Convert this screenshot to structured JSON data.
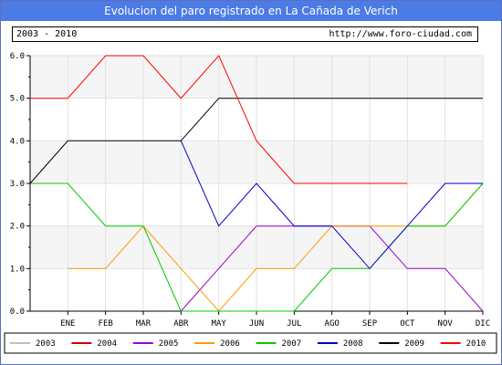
{
  "header": {
    "title": "Evolucion del paro registrado en La Cañada de Verich",
    "period": "2003 - 2010",
    "url": "http://www.foro-ciudad.com"
  },
  "chart_data": {
    "type": "line",
    "title": "Evolucion del paro registrado en La Cañada de Verich",
    "xlabel": "",
    "ylabel": "",
    "x_ticks": [
      "ENE",
      "FEB",
      "MAR",
      "ABR",
      "MAY",
      "JUN",
      "JUL",
      "AGO",
      "SEP",
      "OCT",
      "NOV",
      "DIC"
    ],
    "y_ticks": [
      "0.0",
      "1.0",
      "2.0",
      "3.0",
      "4.0",
      "5.0",
      "6.0"
    ],
    "ylim": [
      0,
      6
    ],
    "x_start": 0,
    "x_end": 12,
    "grid": true,
    "legend_position": "bottom",
    "series": [
      {
        "name": "2003",
        "color": "#c0c0c0",
        "points": []
      },
      {
        "name": "2004",
        "color": "#cc0000",
        "points": []
      },
      {
        "name": "2005",
        "color": "#9900cc",
        "points": [
          [
            4,
            0
          ],
          [
            5,
            1
          ],
          [
            6,
            2
          ],
          [
            7,
            2
          ],
          [
            8,
            2
          ],
          [
            9,
            2
          ],
          [
            10,
            1
          ],
          [
            11,
            1
          ],
          [
            12,
            0
          ]
        ]
      },
      {
        "name": "2006",
        "color": "#ff9900",
        "points": [
          [
            1,
            1
          ],
          [
            2,
            1
          ],
          [
            3,
            2
          ],
          [
            4,
            1
          ],
          [
            5,
            0
          ],
          [
            6,
            1
          ],
          [
            7,
            1
          ],
          [
            8,
            2
          ],
          [
            9,
            2
          ],
          [
            10,
            2
          ],
          [
            11,
            2
          ],
          [
            12,
            3
          ]
        ]
      },
      {
        "name": "2007",
        "color": "#00cc00",
        "points": [
          [
            0,
            3
          ],
          [
            1,
            3
          ],
          [
            2,
            2
          ],
          [
            3,
            2
          ],
          [
            4,
            0
          ],
          [
            5,
            0
          ],
          [
            6,
            0
          ],
          [
            7,
            0
          ],
          [
            8,
            1
          ],
          [
            9,
            1
          ],
          [
            10,
            2
          ],
          [
            11,
            2
          ],
          [
            12,
            3
          ]
        ]
      },
      {
        "name": "2008",
        "color": "#0000cc",
        "points": [
          [
            4,
            4
          ],
          [
            5,
            2
          ],
          [
            6,
            3
          ],
          [
            7,
            2
          ],
          [
            8,
            2
          ],
          [
            9,
            1
          ],
          [
            10,
            2
          ],
          [
            11,
            3
          ],
          [
            12,
            3
          ]
        ]
      },
      {
        "name": "2009",
        "color": "#000000",
        "points": [
          [
            0,
            3
          ],
          [
            1,
            4
          ],
          [
            2,
            4
          ],
          [
            3,
            4
          ],
          [
            4,
            4
          ],
          [
            5,
            5
          ],
          [
            6,
            5
          ],
          [
            7,
            5
          ],
          [
            8,
            5
          ],
          [
            9,
            5
          ],
          [
            10,
            5
          ],
          [
            11,
            5
          ],
          [
            12,
            5
          ]
        ]
      },
      {
        "name": "2010",
        "color": "#ff0000",
        "points": [
          [
            0,
            5
          ],
          [
            1,
            5
          ],
          [
            2,
            6
          ],
          [
            3,
            6
          ],
          [
            4,
            5
          ],
          [
            5,
            6
          ],
          [
            6,
            4
          ],
          [
            7,
            3
          ],
          [
            8,
            3
          ],
          [
            9,
            3
          ],
          [
            10,
            3
          ]
        ]
      }
    ]
  }
}
